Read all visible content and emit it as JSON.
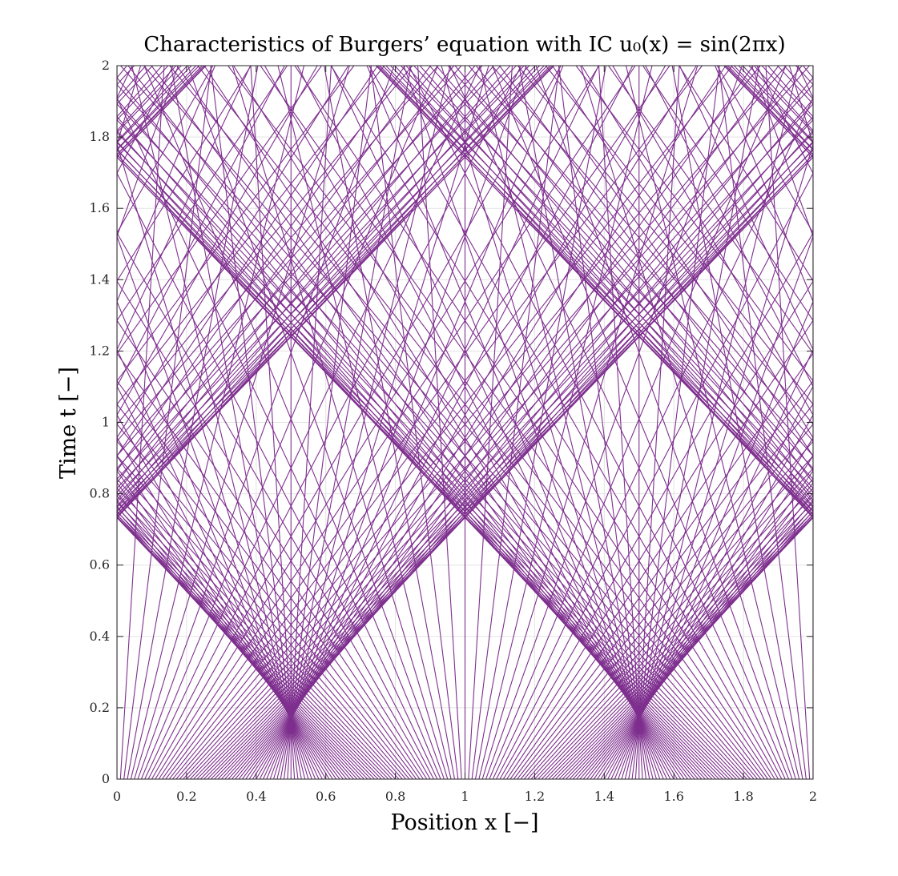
{
  "chart_data": {
    "type": "line",
    "title": "Characteristics of Burgers’ equation with IC u₀(x) = sin(2πx)",
    "xlabel": "Position x [−]",
    "ylabel": "Time t [−]",
    "xlim": [
      0,
      2
    ],
    "ylim": [
      0,
      2
    ],
    "x_ticks": [
      "0",
      "0.2",
      "0.4",
      "0.6",
      "0.8",
      "1",
      "1.2",
      "1.4",
      "1.6",
      "1.8",
      "2"
    ],
    "y_ticks": [
      "0",
      "0.2",
      "0.4",
      "0.6",
      "0.8",
      "1",
      "1.2",
      "1.4",
      "1.6",
      "1.8",
      "2"
    ],
    "grid": true,
    "line_color": "#7e2f8e",
    "series_rule": {
      "description": "Each characteristic line starts at (x0, 0) with slope dx/dt = sin(2*pi*x0); lines wrap periodically in x over [0, 2]",
      "x0_start": 0,
      "x0_end": 2,
      "x0_count": 201,
      "period": 2
    }
  }
}
